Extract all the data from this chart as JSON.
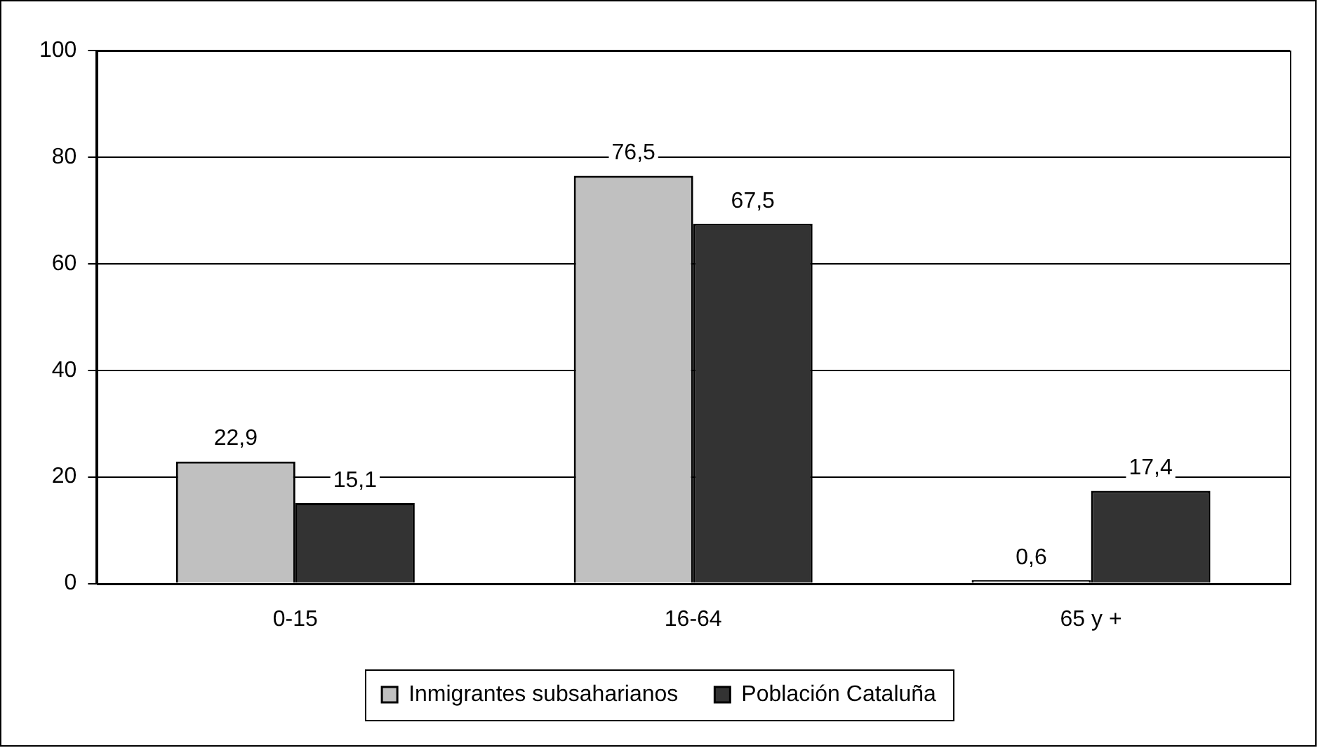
{
  "chart_data": {
    "type": "bar",
    "categories": [
      "0-15",
      "16-64",
      "65 y +"
    ],
    "series": [
      {
        "name": "Inmigrantes subsaharianos",
        "color": "#c0c0c0",
        "values": [
          22.9,
          76.5,
          0.6
        ],
        "value_labels": [
          "22,9",
          "76,5",
          "0,6"
        ]
      },
      {
        "name": "Población Cataluña",
        "color": "#333333",
        "values": [
          15.1,
          67.5,
          17.4
        ],
        "value_labels": [
          "15,1",
          "67,5",
          "17,4"
        ]
      }
    ],
    "ylim": [
      0,
      100
    ],
    "yticks": [
      0,
      20,
      40,
      60,
      80,
      100
    ],
    "grid": "y",
    "legend": "bottom"
  }
}
